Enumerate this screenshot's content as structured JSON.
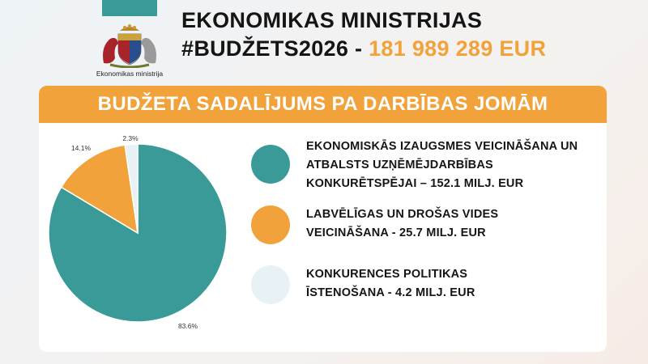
{
  "header": {
    "ministry_name": "EKONOMIKAS MINISTRIJAS",
    "hashtag": "#BUDŽETS2026 -",
    "amount": "181 989 289 EUR",
    "logo_caption": "Ekonomikas ministrija"
  },
  "banner": {
    "title": "BUDŽETA SADALĪJUMS PA DARBĪBAS JOMĀM"
  },
  "colors": {
    "teal": "#3a9a97",
    "orange": "#f2a23a",
    "light": "#e8f1f5"
  },
  "legend": [
    {
      "lines": [
        "EKONOMISKĀS IZAUGSMES VEICINĀŠANA UN",
        "ATBALSTS UZŅĒMĒJDARBĪBAS",
        "KONKURĒTSPĒJAI – 152.1 MILJ. EUR"
      ],
      "color": "#3a9a97"
    },
    {
      "lines": [
        "LABVĒLĪGAS UN DROŠAS VIDES",
        "VEICINĀŠANA - 25.7 MILJ. EUR"
      ],
      "color": "#f2a23a"
    },
    {
      "lines": [
        "KONKURENCES POLITIKAS",
        "ĪSTENOŠANA - 4.2 MILJ. EUR"
      ],
      "color": "#e8f1f5"
    }
  ],
  "chart_data": {
    "type": "pie",
    "title": "BUDŽETA SADALĪJUMS PA DARBĪBAS JOMĀM",
    "start": "12 o'clock, clockwise",
    "slices": [
      {
        "value": 83.6,
        "label": "83.6%",
        "color": "#3a9a97"
      },
      {
        "value": 14.1,
        "label": "14.1%",
        "color": "#f2a23a"
      },
      {
        "value": 2.3,
        "label": "2.3%",
        "color": "#e8f1f5"
      }
    ]
  }
}
